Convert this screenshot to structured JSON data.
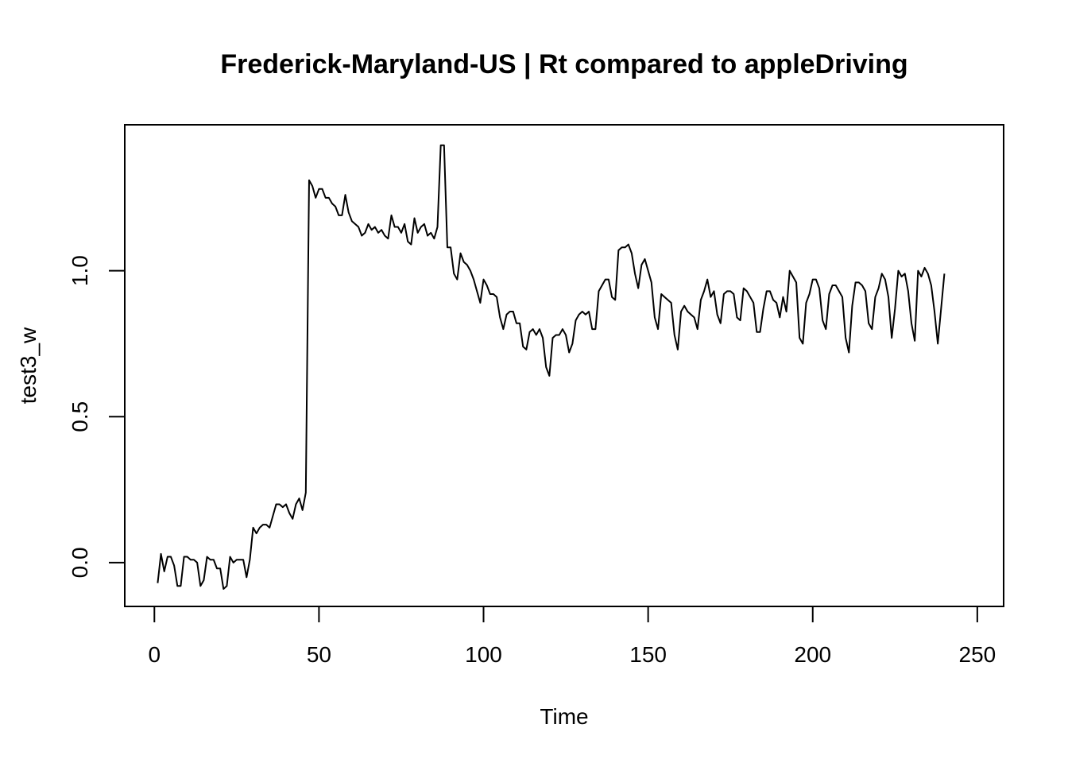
{
  "chart_data": {
    "type": "line",
    "title": "Frederick-Maryland-US | Rt compared to appleDriving",
    "xlabel": "Time",
    "ylabel": "test3_w",
    "xlim": [
      -9,
      258
    ],
    "ylim": [
      -0.15,
      1.5
    ],
    "x_ticks": [
      0,
      50,
      100,
      150,
      200,
      250
    ],
    "y_ticks": [
      0.0,
      0.5,
      1.0
    ],
    "x_tick_labels": [
      "0",
      "50",
      "100",
      "150",
      "200",
      "250"
    ],
    "y_tick_labels": [
      "0.0",
      "0.5",
      "1.0"
    ],
    "grid": false,
    "line_color": "#000000",
    "series": [
      {
        "x_start": 1,
        "x_step": 1,
        "values": [
          -0.07,
          0.03,
          -0.03,
          0.02,
          0.02,
          -0.01,
          -0.08,
          -0.08,
          0.02,
          0.02,
          0.01,
          0.01,
          0.0,
          -0.08,
          -0.06,
          0.02,
          0.01,
          0.01,
          -0.02,
          -0.02,
          -0.09,
          -0.08,
          0.02,
          0.0,
          0.01,
          0.01,
          0.01,
          -0.05,
          0.01,
          0.12,
          0.1,
          0.12,
          0.13,
          0.13,
          0.12,
          0.16,
          0.2,
          0.2,
          0.19,
          0.2,
          0.17,
          0.15,
          0.2,
          0.22,
          0.18,
          0.24,
          1.31,
          1.29,
          1.25,
          1.28,
          1.28,
          1.25,
          1.25,
          1.23,
          1.22,
          1.19,
          1.19,
          1.26,
          1.2,
          1.17,
          1.16,
          1.15,
          1.12,
          1.13,
          1.16,
          1.14,
          1.15,
          1.13,
          1.14,
          1.12,
          1.11,
          1.19,
          1.15,
          1.15,
          1.13,
          1.16,
          1.1,
          1.09,
          1.18,
          1.13,
          1.15,
          1.16,
          1.12,
          1.13,
          1.11,
          1.15,
          1.43,
          1.43,
          1.08,
          1.08,
          0.99,
          0.97,
          1.06,
          1.03,
          1.02,
          1.0,
          0.97,
          0.93,
          0.89,
          0.97,
          0.95,
          0.92,
          0.92,
          0.91,
          0.84,
          0.8,
          0.85,
          0.86,
          0.86,
          0.82,
          0.82,
          0.74,
          0.73,
          0.79,
          0.8,
          0.78,
          0.8,
          0.77,
          0.67,
          0.64,
          0.77,
          0.78,
          0.78,
          0.8,
          0.78,
          0.72,
          0.75,
          0.83,
          0.85,
          0.86,
          0.85,
          0.86,
          0.8,
          0.8,
          0.93,
          0.95,
          0.97,
          0.97,
          0.91,
          0.9,
          1.07,
          1.08,
          1.08,
          1.09,
          1.06,
          0.99,
          0.94,
          1.02,
          1.04,
          1.0,
          0.96,
          0.84,
          0.8,
          0.92,
          0.91,
          0.9,
          0.89,
          0.78,
          0.73,
          0.86,
          0.88,
          0.86,
          0.85,
          0.84,
          0.8,
          0.9,
          0.93,
          0.97,
          0.91,
          0.93,
          0.85,
          0.82,
          0.92,
          0.93,
          0.93,
          0.92,
          0.84,
          0.83,
          0.94,
          0.93,
          0.91,
          0.89,
          0.79,
          0.79,
          0.87,
          0.93,
          0.93,
          0.9,
          0.89,
          0.84,
          0.91,
          0.86,
          1.0,
          0.98,
          0.96,
          0.77,
          0.75,
          0.89,
          0.92,
          0.97,
          0.97,
          0.94,
          0.83,
          0.8,
          0.92,
          0.95,
          0.95,
          0.93,
          0.91,
          0.77,
          0.72,
          0.88,
          0.96,
          0.96,
          0.95,
          0.93,
          0.82,
          0.8,
          0.91,
          0.94,
          0.99,
          0.97,
          0.91,
          0.77,
          0.87,
          1.0,
          0.98,
          0.99,
          0.93,
          0.82,
          0.76,
          1.0,
          0.98,
          1.01,
          0.99,
          0.95,
          0.86,
          0.75,
          0.87,
          0.99
        ]
      }
    ]
  }
}
